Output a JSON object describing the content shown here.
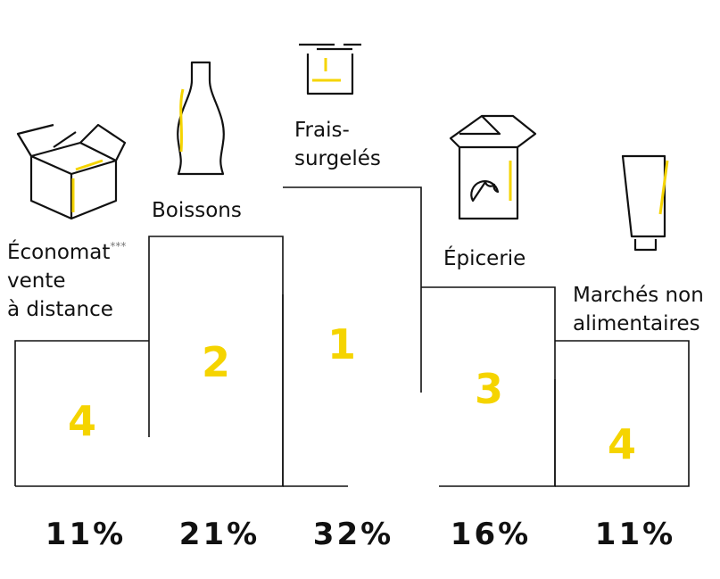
{
  "columns": [
    {
      "label": [
        "Économat",
        "vente",
        "à distance"
      ],
      "note": "***",
      "rank": "4",
      "share": "11%"
    },
    {
      "label": [
        "Boissons"
      ],
      "rank": "2",
      "share": "21%"
    },
    {
      "label": [
        "Frais-",
        "surgelés"
      ],
      "rank": "1",
      "share": "32%"
    },
    {
      "label": [
        "Épicerie"
      ],
      "rank": "3",
      "share": "16%"
    },
    {
      "label": [
        "Marchés non",
        "alimentaires"
      ],
      "rank": "4",
      "share": "11%"
    }
  ]
}
